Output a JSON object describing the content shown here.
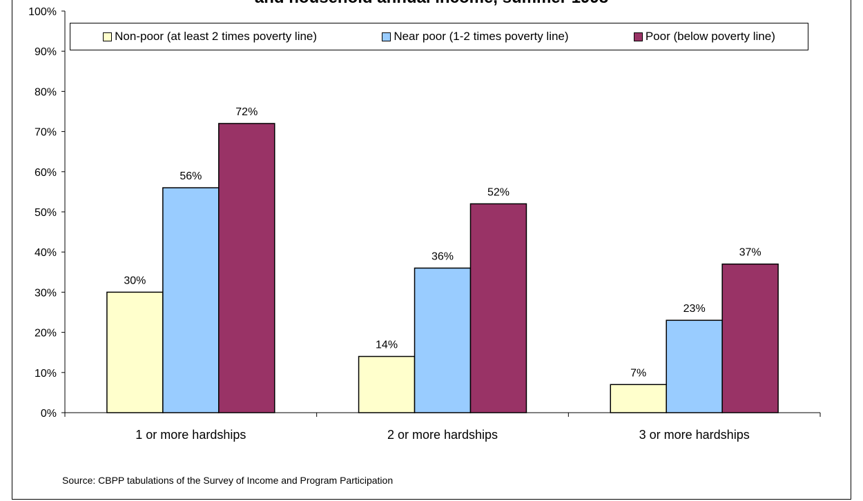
{
  "chart_data": {
    "type": "bar",
    "title": "and household annual income, summer 1998",
    "categories": [
      "1 or more hardships",
      "2 or more hardships",
      "3 or more hardships"
    ],
    "series": [
      {
        "name": "Non-poor (at least 2 times poverty line)",
        "color": "#FFFFCC",
        "values": [
          30,
          14,
          7
        ],
        "labels": [
          "30%",
          "14%",
          "7%"
        ]
      },
      {
        "name": "Near poor (1-2 times poverty line)",
        "color": "#99CCFF",
        "values": [
          56,
          36,
          23
        ],
        "labels": [
          "56%",
          "36%",
          "23%"
        ]
      },
      {
        "name": "Poor (below poverty line)",
        "color": "#993366",
        "values": [
          72,
          52,
          37
        ],
        "labels": [
          "72%",
          "52%",
          "37%"
        ]
      }
    ],
    "ylim": [
      0,
      100
    ],
    "yticks": [
      "0%",
      "10%",
      "20%",
      "30%",
      "40%",
      "50%",
      "60%",
      "70%",
      "80%",
      "90%",
      "100%"
    ],
    "xlabel": "",
    "ylabel": "",
    "grid": false,
    "legend_position": "top"
  },
  "source": "Source: CBPP tabulations of the Survey of Income and Program Participation"
}
